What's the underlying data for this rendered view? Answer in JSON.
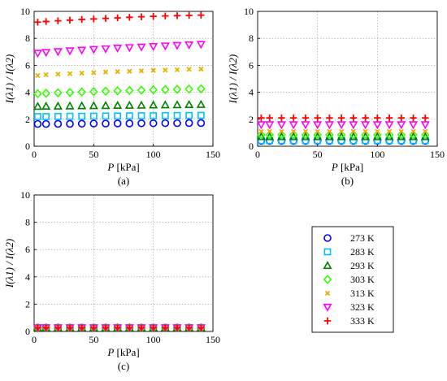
{
  "chart_data": [
    {
      "type": "scatter",
      "panel_label": "(a)",
      "xlabel": "P [kPa]",
      "ylabel": "I(λ1) / I(λ2)",
      "xlim": [
        0,
        150
      ],
      "ylim": [
        0,
        10
      ],
      "xticks": [
        "0",
        "50",
        "100",
        "150"
      ],
      "yticks": [
        "0",
        "2",
        "4",
        "6",
        "8",
        "10"
      ],
      "grid": true,
      "x": [
        3,
        10,
        20,
        30,
        40,
        50,
        60,
        70,
        80,
        90,
        100,
        110,
        120,
        130,
        140
      ],
      "series": [
        {
          "name": "273 K",
          "values": [
            1.65,
            1.65,
            1.66,
            1.66,
            1.67,
            1.68,
            1.68,
            1.69,
            1.69,
            1.7,
            1.7,
            1.71,
            1.71,
            1.72,
            1.72
          ]
        },
        {
          "name": "283 K",
          "values": [
            2.2,
            2.2,
            2.21,
            2.22,
            2.22,
            2.23,
            2.24,
            2.24,
            2.25,
            2.26,
            2.26,
            2.27,
            2.28,
            2.28,
            2.29
          ]
        },
        {
          "name": "293 K",
          "values": [
            2.95,
            2.96,
            2.97,
            2.98,
            2.99,
            3.0,
            3.01,
            3.02,
            3.03,
            3.04,
            3.05,
            3.06,
            3.07,
            3.08,
            3.09
          ]
        },
        {
          "name": "303 K",
          "values": [
            3.9,
            3.93,
            3.96,
            3.99,
            4.02,
            4.05,
            4.08,
            4.11,
            4.13,
            4.16,
            4.18,
            4.2,
            4.22,
            4.24,
            4.26
          ]
        },
        {
          "name": "313 K",
          "values": [
            5.25,
            5.3,
            5.34,
            5.38,
            5.42,
            5.46,
            5.5,
            5.53,
            5.56,
            5.59,
            5.62,
            5.65,
            5.67,
            5.7,
            5.72
          ]
        },
        {
          "name": "323 K",
          "values": [
            6.9,
            6.96,
            7.02,
            7.08,
            7.13,
            7.18,
            7.23,
            7.28,
            7.32,
            7.36,
            7.4,
            7.44,
            7.48,
            7.52,
            7.56
          ]
        },
        {
          "name": "333 K",
          "values": [
            9.2,
            9.25,
            9.3,
            9.35,
            9.4,
            9.44,
            9.48,
            9.52,
            9.56,
            9.6,
            9.63,
            9.66,
            9.68,
            9.7,
            9.72
          ]
        }
      ]
    },
    {
      "type": "scatter",
      "panel_label": "(b)",
      "xlabel": "P [kPa]",
      "ylabel": "I(λ1) / I(λ2)",
      "xlim": [
        0,
        150
      ],
      "ylim": [
        0,
        10
      ],
      "xticks": [
        "0",
        "50",
        "100",
        "150"
      ],
      "yticks": [
        "0",
        "2",
        "4",
        "6",
        "8",
        "10"
      ],
      "grid": true,
      "x": [
        3,
        10,
        20,
        30,
        40,
        50,
        60,
        70,
        80,
        90,
        100,
        110,
        120,
        130,
        140
      ],
      "series": [
        {
          "name": "273 K",
          "values": [
            0.4,
            0.4,
            0.4,
            0.4,
            0.4,
            0.4,
            0.4,
            0.4,
            0.4,
            0.4,
            0.4,
            0.4,
            0.4,
            0.4,
            0.4
          ]
        },
        {
          "name": "283 K",
          "values": [
            0.42,
            0.42,
            0.42,
            0.42,
            0.42,
            0.42,
            0.42,
            0.42,
            0.42,
            0.42,
            0.42,
            0.42,
            0.42,
            0.42,
            0.42
          ]
        },
        {
          "name": "293 K",
          "values": [
            0.7,
            0.7,
            0.7,
            0.7,
            0.7,
            0.7,
            0.7,
            0.7,
            0.7,
            0.7,
            0.7,
            0.7,
            0.7,
            0.7,
            0.7
          ]
        },
        {
          "name": "303 K",
          "values": [
            0.85,
            0.85,
            0.85,
            0.85,
            0.85,
            0.85,
            0.85,
            0.85,
            0.85,
            0.85,
            0.85,
            0.85,
            0.85,
            0.85,
            0.85
          ]
        },
        {
          "name": "313 K",
          "values": [
            1.1,
            1.1,
            1.1,
            1.1,
            1.1,
            1.1,
            1.1,
            1.1,
            1.1,
            1.1,
            1.1,
            1.1,
            1.1,
            1.1,
            1.1
          ]
        },
        {
          "name": "323 K",
          "values": [
            1.6,
            1.6,
            1.6,
            1.6,
            1.6,
            1.6,
            1.6,
            1.6,
            1.6,
            1.6,
            1.6,
            1.6,
            1.6,
            1.6,
            1.6
          ]
        },
        {
          "name": "333 K",
          "values": [
            2.1,
            2.1,
            2.1,
            2.1,
            2.1,
            2.1,
            2.1,
            2.1,
            2.1,
            2.1,
            2.1,
            2.1,
            2.1,
            2.1,
            2.1
          ]
        }
      ]
    },
    {
      "type": "scatter",
      "panel_label": "(c)",
      "xlabel": "P [kPa]",
      "ylabel": "I(λ1) / I(λ2)",
      "xlim": [
        0,
        150
      ],
      "ylim": [
        0,
        10
      ],
      "xticks": [
        "0",
        "50",
        "100",
        "150"
      ],
      "yticks": [
        "0",
        "2",
        "4",
        "6",
        "8",
        "10"
      ],
      "grid": true,
      "x": [
        3,
        10,
        20,
        30,
        40,
        50,
        60,
        70,
        80,
        90,
        100,
        110,
        120,
        130,
        140
      ],
      "series": [
        {
          "name": "273 K",
          "values": [
            0.28,
            0.28,
            0.28,
            0.28,
            0.28,
            0.28,
            0.28,
            0.28,
            0.28,
            0.28,
            0.28,
            0.28,
            0.28,
            0.28,
            0.28
          ]
        },
        {
          "name": "283 K",
          "values": [
            0.28,
            0.28,
            0.28,
            0.28,
            0.28,
            0.28,
            0.28,
            0.28,
            0.28,
            0.28,
            0.28,
            0.28,
            0.28,
            0.28,
            0.28
          ]
        },
        {
          "name": "293 K",
          "values": [
            0.27,
            0.27,
            0.27,
            0.27,
            0.27,
            0.27,
            0.27,
            0.27,
            0.27,
            0.27,
            0.27,
            0.27,
            0.27,
            0.27,
            0.27
          ]
        },
        {
          "name": "303 K",
          "values": [
            0.27,
            0.27,
            0.27,
            0.27,
            0.27,
            0.27,
            0.27,
            0.27,
            0.27,
            0.27,
            0.27,
            0.27,
            0.27,
            0.27,
            0.27
          ]
        },
        {
          "name": "313 K",
          "values": [
            0.27,
            0.27,
            0.27,
            0.27,
            0.27,
            0.27,
            0.27,
            0.27,
            0.27,
            0.27,
            0.27,
            0.27,
            0.27,
            0.27,
            0.27
          ]
        },
        {
          "name": "323 K",
          "values": [
            0.27,
            0.27,
            0.27,
            0.27,
            0.27,
            0.27,
            0.27,
            0.27,
            0.27,
            0.27,
            0.27,
            0.27,
            0.27,
            0.27,
            0.27
          ]
        },
        {
          "name": "333 K",
          "values": [
            0.26,
            0.26,
            0.26,
            0.26,
            0.26,
            0.26,
            0.26,
            0.26,
            0.26,
            0.26,
            0.26,
            0.26,
            0.26,
            0.26,
            0.26
          ]
        }
      ]
    }
  ],
  "legend": {
    "entries": [
      {
        "label": "273 K",
        "marker": "circle",
        "color": "#0000ff"
      },
      {
        "label": "283 K",
        "marker": "square",
        "color": "#00bfff"
      },
      {
        "label": "293 K",
        "marker": "triangle-up",
        "color": "#008000"
      },
      {
        "label": "303 K",
        "marker": "diamond",
        "color": "#33ff00"
      },
      {
        "label": "313 K",
        "marker": "x",
        "color": "#e8b000"
      },
      {
        "label": "323 K",
        "marker": "triangle-down",
        "color": "#ff00ff"
      },
      {
        "label": "333 K",
        "marker": "plus",
        "color": "#ff0000"
      }
    ]
  }
}
